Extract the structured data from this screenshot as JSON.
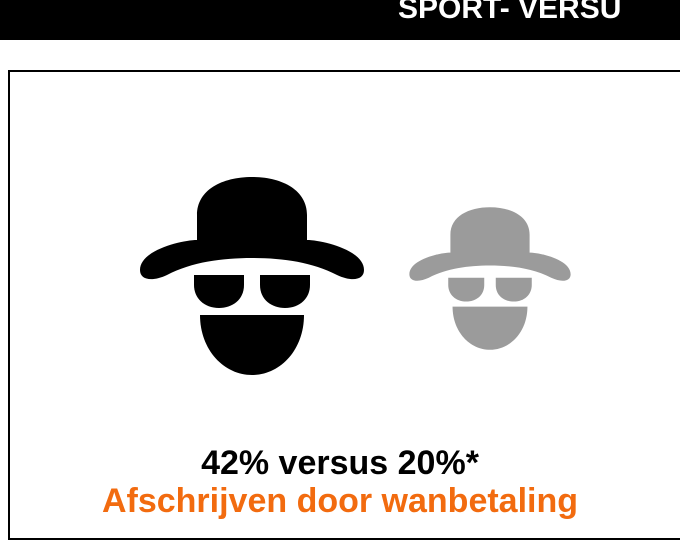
{
  "header": {
    "title": "SPORT- VERSU"
  },
  "content": {
    "headline": "42% versus 20%*",
    "subtitle": "Afschrijven door wanbetaling"
  }
}
